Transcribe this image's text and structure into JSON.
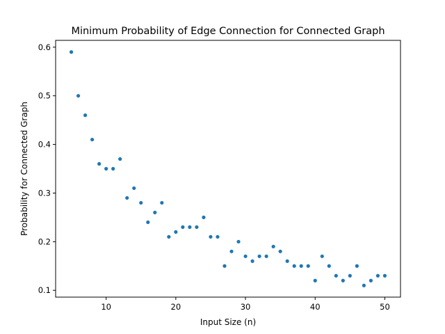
{
  "chart_data": {
    "type": "scatter",
    "title": "Minimum Probability of Edge Connection for Connected Graph",
    "xlabel": "Input Size (n)",
    "ylabel": "Probability for Connected Graph",
    "xlim": [
      2.75,
      52.25
    ],
    "ylim": [
      0.086,
      0.614
    ],
    "xticks": [
      10,
      20,
      30,
      40,
      50
    ],
    "yticks": [
      0.1,
      0.2,
      0.3,
      0.4,
      0.5,
      0.6
    ],
    "grid": false,
    "color": "#1f77b4",
    "x": [
      5,
      6,
      7,
      8,
      9,
      10,
      11,
      12,
      13,
      14,
      15,
      16,
      17,
      18,
      19,
      20,
      21,
      22,
      23,
      24,
      25,
      26,
      27,
      28,
      29,
      30,
      31,
      32,
      33,
      34,
      35,
      36,
      37,
      38,
      39,
      40,
      41,
      42,
      43,
      44,
      45,
      46,
      47,
      48,
      49,
      50
    ],
    "y": [
      0.59,
      0.5,
      0.46,
      0.41,
      0.36,
      0.35,
      0.35,
      0.37,
      0.29,
      0.31,
      0.28,
      0.24,
      0.26,
      0.28,
      0.21,
      0.22,
      0.23,
      0.23,
      0.23,
      0.25,
      0.21,
      0.21,
      0.15,
      0.18,
      0.2,
      0.17,
      0.16,
      0.17,
      0.17,
      0.19,
      0.18,
      0.16,
      0.15,
      0.15,
      0.15,
      0.12,
      0.17,
      0.15,
      0.13,
      0.12,
      0.13,
      0.15,
      0.11,
      0.12,
      0.13,
      0.13
    ]
  }
}
